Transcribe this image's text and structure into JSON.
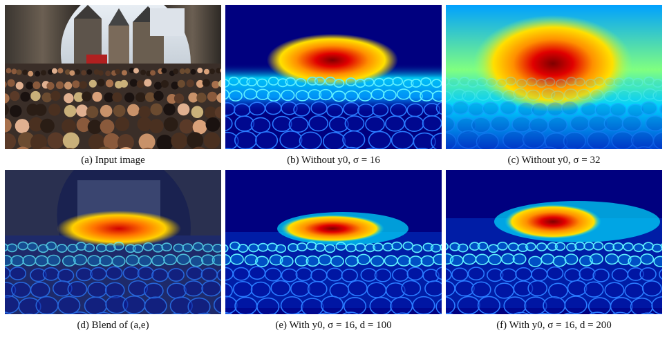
{
  "figure": {
    "panels": [
      {
        "id": "a",
        "caption": "(a) Input image",
        "kind": "photo"
      },
      {
        "id": "b",
        "caption": "(b) Without y0, σ = 16",
        "kind": "density"
      },
      {
        "id": "c",
        "caption": "(c) Without y0, σ = 32",
        "kind": "density"
      },
      {
        "id": "d",
        "caption": "(d) Blend of (a,e)",
        "kind": "blend"
      },
      {
        "id": "e",
        "caption": "(e) With y0, σ = 16, d = 100",
        "kind": "density"
      },
      {
        "id": "f",
        "caption": "(f) With y0, σ = 16, d = 200",
        "kind": "density"
      }
    ],
    "colors": {
      "jet_low": "#00007f",
      "jet_blue": "#0050ff",
      "jet_cyan": "#00e0ff",
      "jet_yellow": "#ffe000",
      "jet_red": "#e00000",
      "jet_dark_red": "#7f0000"
    }
  }
}
